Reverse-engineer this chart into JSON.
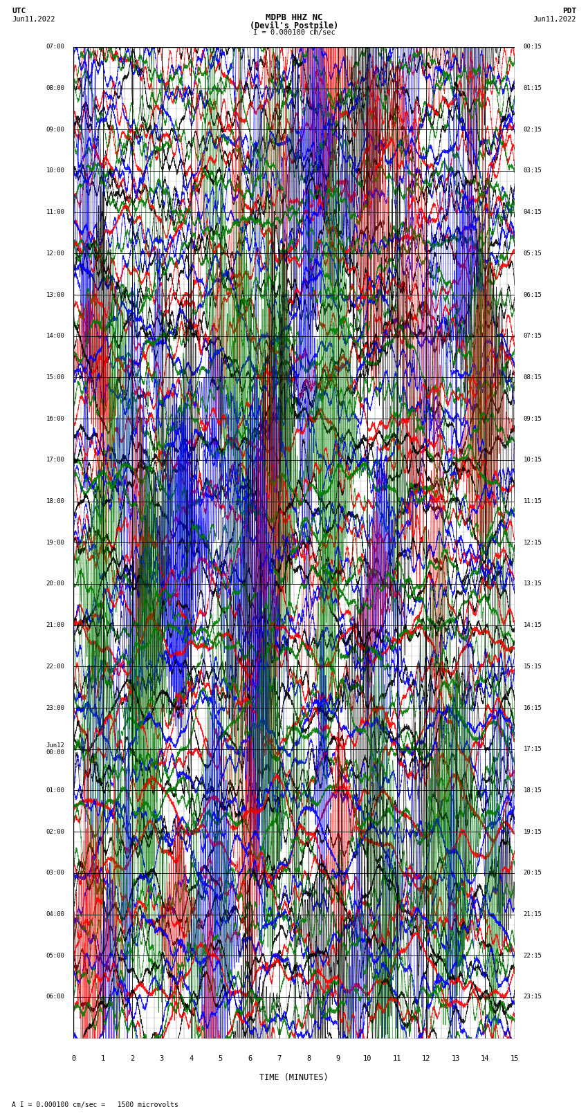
{
  "title_line1": "MDPB HHZ NC",
  "title_line2": "(Devil's Postpile)",
  "scale_label": "I = 0.000100 cm/sec",
  "bottom_label": "A I = 0.000100 cm/sec =   1500 microvolts",
  "left_label": "UTC",
  "left_date": "Jun11,2022",
  "right_label": "PDT",
  "right_date": "Jun11,2022",
  "xlabel": "TIME (MINUTES)",
  "left_times": [
    "07:00",
    "08:00",
    "09:00",
    "10:00",
    "11:00",
    "12:00",
    "13:00",
    "14:00",
    "15:00",
    "16:00",
    "17:00",
    "18:00",
    "19:00",
    "20:00",
    "21:00",
    "22:00",
    "23:00",
    "Jun12\n00:00",
    "01:00",
    "02:00",
    "03:00",
    "04:00",
    "05:00",
    "06:00"
  ],
  "right_times": [
    "00:15",
    "01:15",
    "02:15",
    "03:15",
    "04:15",
    "05:15",
    "06:15",
    "07:15",
    "08:15",
    "09:15",
    "10:15",
    "11:15",
    "12:15",
    "13:15",
    "14:15",
    "15:15",
    "16:15",
    "17:15",
    "18:15",
    "19:15",
    "20:15",
    "21:15",
    "22:15",
    "23:15"
  ],
  "x_ticks": [
    0,
    1,
    2,
    3,
    4,
    5,
    6,
    7,
    8,
    9,
    10,
    11,
    12,
    13,
    14,
    15
  ],
  "xlim": [
    0,
    15
  ],
  "num_rows": 24,
  "colors": [
    "black",
    "red",
    "blue",
    "green"
  ],
  "bg_color": "#ffffff",
  "grid_color": "#000000",
  "fig_width": 8.5,
  "fig_height": 16.13,
  "dpi": 100,
  "seed": 42
}
